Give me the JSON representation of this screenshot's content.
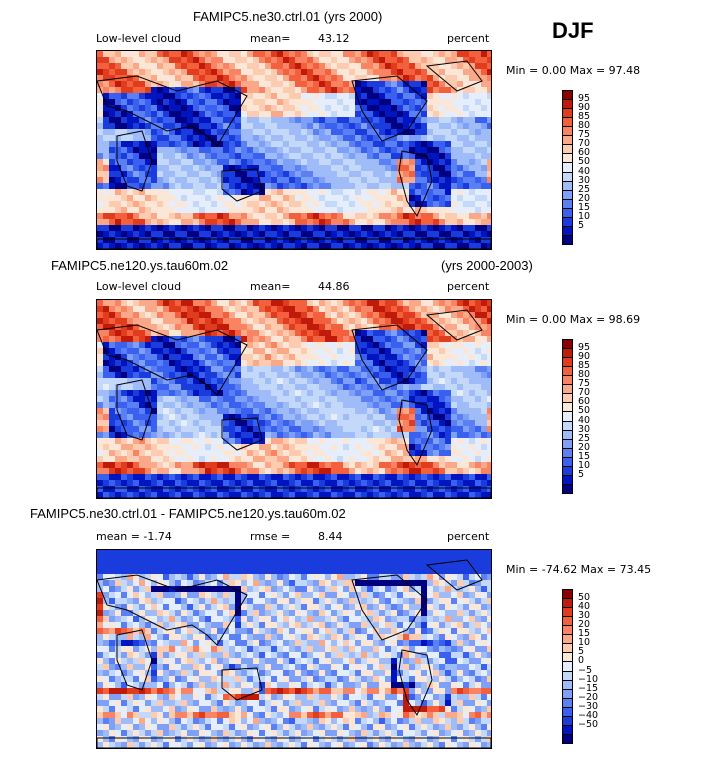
{
  "season": "DJF",
  "colors": {
    "cloud_scale": [
      "#000080",
      "#0014c0",
      "#1a3cdc",
      "#3a60f0",
      "#5a80f4",
      "#7ea0f6",
      "#a0bcf8",
      "#c4d8fa",
      "#e6eefc",
      "#fbe7d8",
      "#fccbb0",
      "#fba888",
      "#f88464",
      "#f2603e",
      "#e23c1e",
      "#c01a0a",
      "#8a0000"
    ],
    "diff_scale": [
      "#000080",
      "#0014c0",
      "#1a3cdc",
      "#3a60f0",
      "#5a80f4",
      "#7ea0f6",
      "#a0bcf8",
      "#c4d8fa",
      "#e6eefc",
      "#fbe7d8",
      "#fccbb0",
      "#fba888",
      "#f88464",
      "#f2603e",
      "#e23c1e",
      "#c01a0a",
      "#8a0000"
    ]
  },
  "panels": [
    {
      "title": "FAMIPC5.ne30.ctrl.01 (yrs 2000)",
      "left_label": "Low-level cloud",
      "stat_label": "mean=",
      "stat_value": "43.12",
      "second_stat": "",
      "units": "percent",
      "minmax": "Min =   0.00 Max =  97.48",
      "cbar_labels": [
        "95",
        "90",
        "85",
        "80",
        "75",
        "70",
        "60",
        "50",
        "40",
        "30",
        "25",
        "20",
        "15",
        "10",
        "5"
      ]
    },
    {
      "title": "FAMIPC5.ne120.ys.tau60m.02",
      "title_right": "(yrs 2000-2003)",
      "left_label": "Low-level cloud",
      "stat_label": "mean=",
      "stat_value": "44.86",
      "second_stat": "",
      "units": "percent",
      "minmax": "Min =   0.00 Max =  98.69",
      "cbar_labels": [
        "95",
        "90",
        "85",
        "80",
        "75",
        "70",
        "60",
        "50",
        "40",
        "30",
        "25",
        "20",
        "15",
        "10",
        "5"
      ]
    },
    {
      "title": "FAMIPC5.ne30.ctrl.01 - FAMIPC5.ne120.ys.tau60m.02",
      "left_label": "mean =  -1.74",
      "stat_label": "rmse =",
      "stat_value": "8.44",
      "units": "percent",
      "minmax": "Min = -74.62 Max =  73.45",
      "cbar_labels": [
        "50",
        "40",
        "30",
        "20",
        "15",
        "10",
        "5",
        "0",
        "−5",
        "−10",
        "−15",
        "−20",
        "−30",
        "−40",
        "−50"
      ]
    }
  ],
  "chart_data": [
    {
      "type": "heatmap",
      "title": "FAMIPC5.ne30.ctrl.01 (yrs 2000)",
      "variable": "Low-level cloud",
      "units": "percent",
      "mean": 43.12,
      "min": 0.0,
      "max": 97.48,
      "levels": [
        5,
        10,
        15,
        20,
        25,
        30,
        40,
        50,
        60,
        70,
        75,
        80,
        85,
        90,
        95
      ]
    },
    {
      "type": "heatmap",
      "title": "FAMIPC5.ne120.ys.tau60m.02 (yrs 2000-2003)",
      "variable": "Low-level cloud",
      "units": "percent",
      "mean": 44.86,
      "min": 0.0,
      "max": 98.69,
      "levels": [
        5,
        10,
        15,
        20,
        25,
        30,
        40,
        50,
        60,
        70,
        75,
        80,
        85,
        90,
        95
      ]
    },
    {
      "type": "heatmap",
      "title": "FAMIPC5.ne30.ctrl.01 - FAMIPC5.ne120.ys.tau60m.02",
      "units": "percent",
      "mean": -1.74,
      "rmse": 8.44,
      "min": -74.62,
      "max": 73.45,
      "levels": [
        -50,
        -40,
        -30,
        -20,
        -15,
        -10,
        -5,
        0,
        5,
        10,
        15,
        20,
        30,
        40,
        50
      ]
    }
  ]
}
